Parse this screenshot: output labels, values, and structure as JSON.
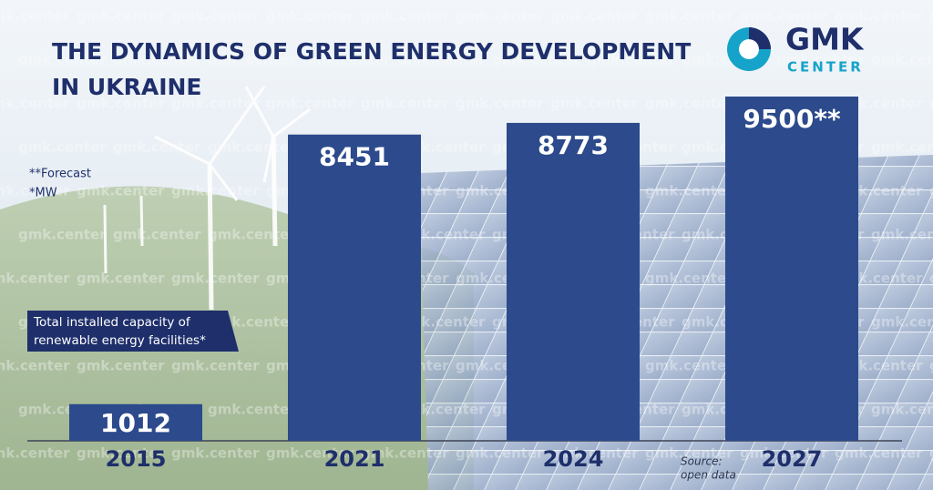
{
  "title_lines": [
    "THE DYNAMICS OF GREEN ENERGY DEVELOPMENT",
    "IN UKRAINE"
  ],
  "logo": {
    "top": "GMK",
    "bottom": "CENTER"
  },
  "watermark": "gmk.center",
  "notes": [
    "**Forecast",
    "*MW"
  ],
  "capacity_label": [
    "Total installed capacity of",
    "renewable energy facilities*"
  ],
  "source": [
    "Source:",
    "open data"
  ],
  "chart_data": {
    "type": "bar",
    "categories": [
      "2015",
      "2021",
      "2024",
      "2027"
    ],
    "values": [
      1012,
      8451,
      8773,
      9500
    ],
    "value_labels": [
      "1012",
      "8451",
      "8773",
      "9500**"
    ],
    "color": "#2c4a8c"
  }
}
